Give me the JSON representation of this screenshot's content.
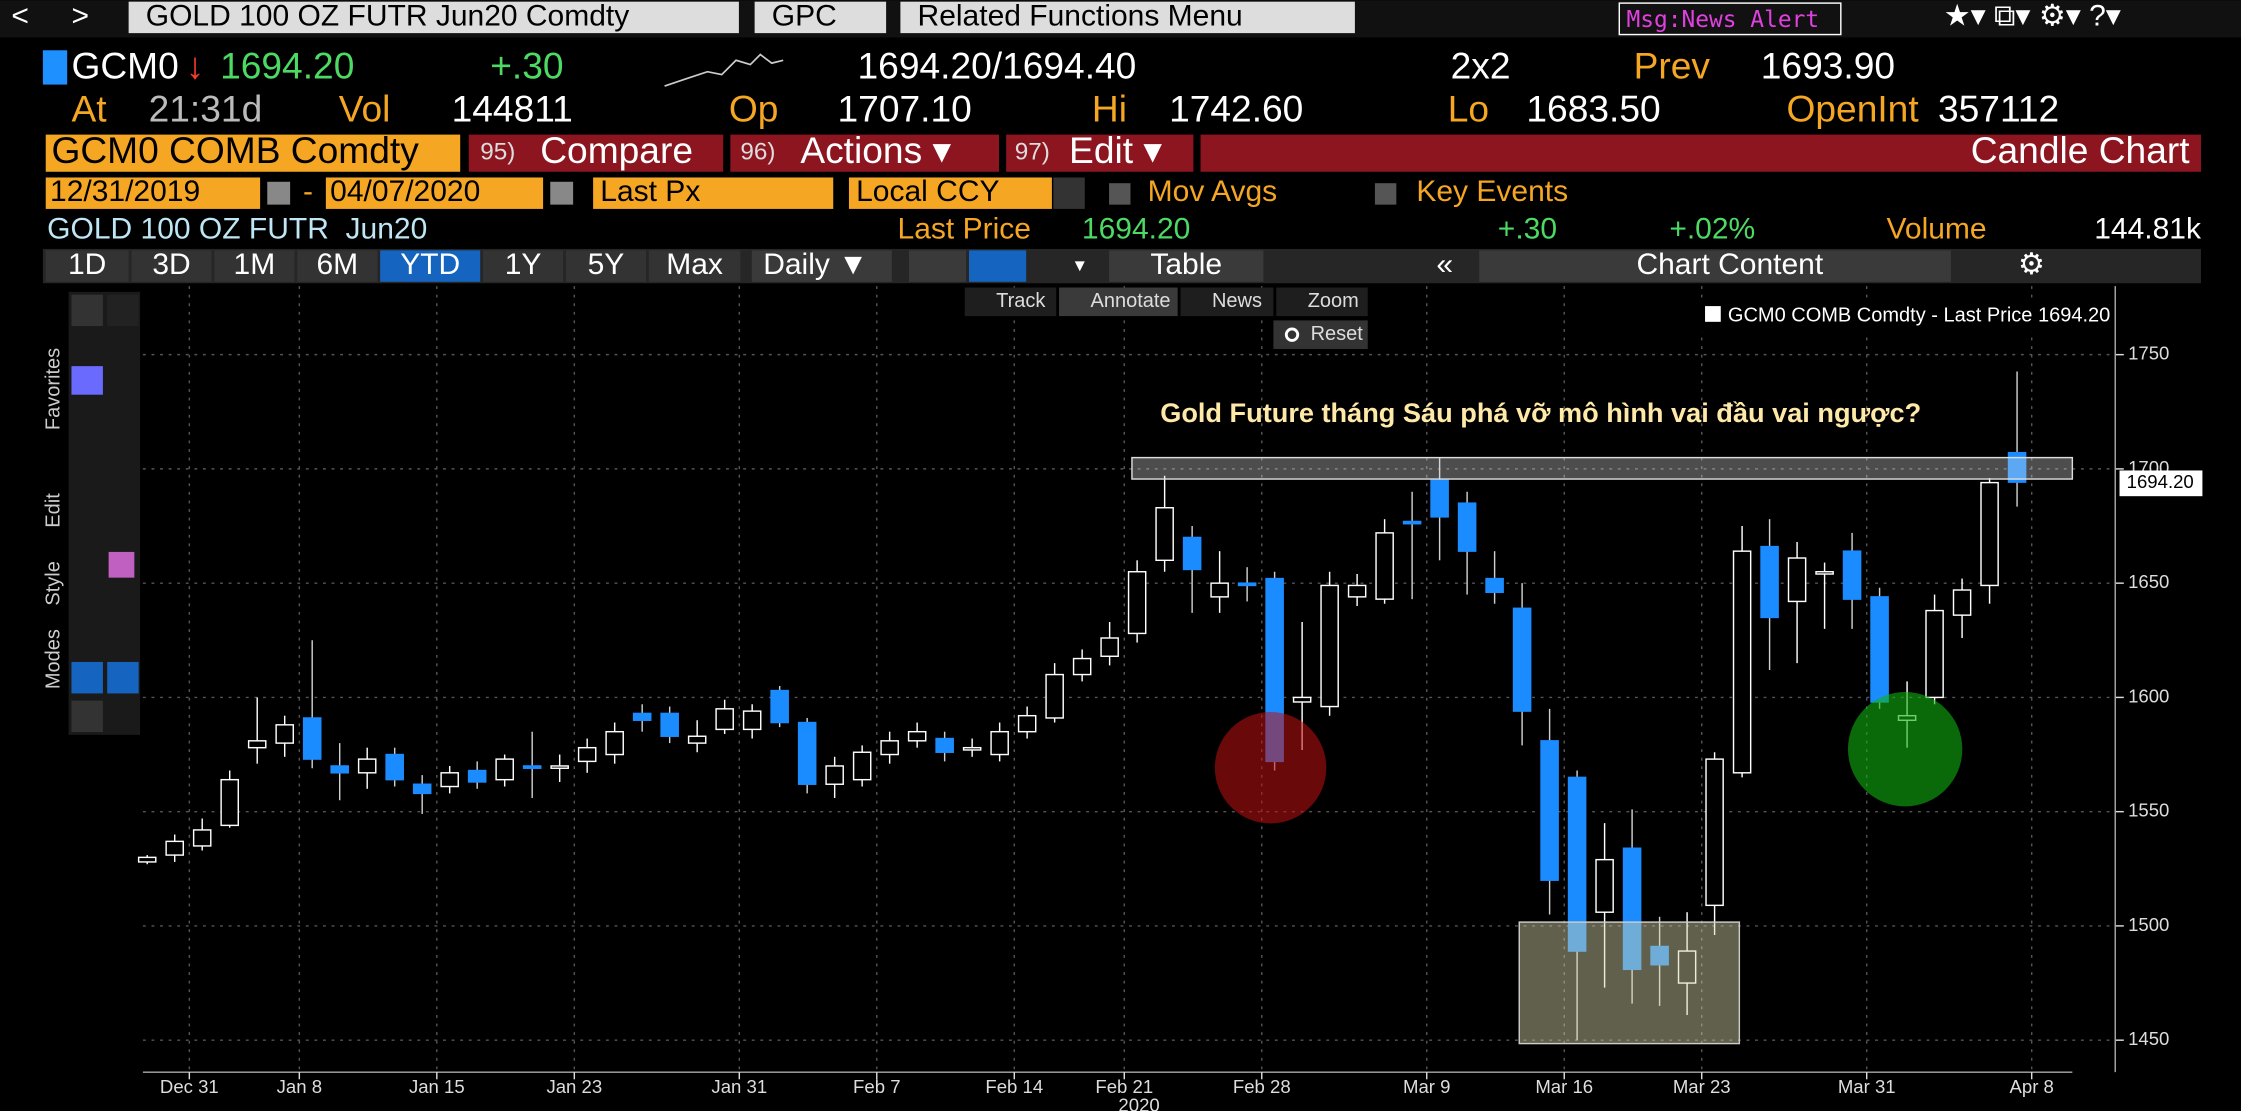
{
  "toolbar": {
    "security": "GOLD 100 OZ FUTR Jun20 Comdty",
    "function": "GPC",
    "related": "Related Functions Menu",
    "alert": "Msg:News Alert"
  },
  "quote": {
    "ticker": "GCM0",
    "last": "1694.20",
    "change": "+.30",
    "bid_ask": "1694.20/1694.40",
    "size": "2x2",
    "prev_label": "Prev",
    "prev": "1693.90",
    "at_label": "At",
    "time": "21:31d",
    "vol_label": "Vol",
    "volume": "144811",
    "open_label": "Op",
    "open": "1707.10",
    "high_label": "Hi",
    "high": "1742.60",
    "low_label": "Lo",
    "low": "1683.50",
    "oi_label": "OpenInt",
    "open_interest": "357112"
  },
  "actions": {
    "security": "GCM0 COMB Comdty",
    "compare_key": "95)",
    "compare": "Compare",
    "actions_key": "96)",
    "actions": "Actions ▾",
    "edit_key": "97)",
    "edit": "Edit ▾",
    "chart_type": "Candle Chart"
  },
  "settings": {
    "start": "12/31/2019",
    "dash": "-",
    "end": "04/07/2020",
    "field": "Last Px",
    "currency": "Local CCY",
    "mov_avgs": "Mov Avgs",
    "key_events": "Key Events"
  },
  "summary": {
    "name": "GOLD 100 OZ FUTR  Jun20",
    "last_label": "Last Price",
    "last": "1694.20",
    "change": "+.30",
    "change_pct": "+.02%",
    "volume_label": "Volume",
    "volume": "144.81k"
  },
  "tabs": [
    "1D",
    "3D",
    "1M",
    "6M",
    "YTD",
    "1Y",
    "5Y",
    "Max"
  ],
  "periodicity": "Daily ▼",
  "table": "Table",
  "chart_content": "Chart Content",
  "chart_tools": [
    "Track",
    "Annotate",
    "News",
    "Zoom"
  ],
  "reset": "Reset",
  "side_panels": [
    "Favorites",
    "Edit",
    "Style",
    "Modes"
  ],
  "chart_data": {
    "type": "candlestick",
    "legend": "GCM0 COMB Comdty - Last Price 1694.20",
    "annotation": "Gold Future tháng Sáu phá vỡ mô hình vai đầu vai ngược?",
    "year_label": "2020",
    "price_tag": "1694.20",
    "categories": [
      null,
      null,
      "Dec 31",
      null,
      null,
      null,
      "Jan 8",
      null,
      null,
      null,
      null,
      "Jan 15",
      null,
      null,
      null,
      null,
      "Jan 23",
      null,
      null,
      null,
      null,
      null,
      "Jan 31",
      null,
      null,
      null,
      null,
      "Feb 7",
      null,
      null,
      null,
      null,
      "Feb 14",
      null,
      null,
      null,
      "Feb 21",
      null,
      null,
      null,
      null,
      "Feb 28",
      null,
      null,
      null,
      null,
      null,
      "Mar 9",
      null,
      null,
      null,
      null,
      "Mar 16",
      null,
      null,
      null,
      null,
      "Mar 23",
      null,
      null,
      null,
      null,
      null,
      "Mar 31",
      null,
      null,
      null,
      null,
      null,
      "Apr 8"
    ],
    "open": [
      1528,
      1531,
      1535,
      1544,
      1578,
      1580,
      1591,
      1570,
      1567,
      1575,
      1562,
      1561,
      1568,
      1564,
      1570,
      1569,
      1572,
      1575,
      1593,
      1593,
      1580,
      1586,
      1586,
      1603,
      1589,
      1562,
      1564,
      1575,
      1581,
      1582,
      1577,
      1575,
      1585,
      1591,
      1610,
      1618,
      1628,
      1660,
      1670,
      1644,
      1650,
      1652,
      1598,
      1596,
      1644,
      1643,
      1677,
      1695,
      1685,
      1652,
      1639,
      1581,
      1565,
      1506,
      1534,
      1491,
      1475,
      1509,
      1567,
      1666,
      1642,
      1654,
      1664,
      1644,
      1590,
      1600,
      1636,
      1649,
      1707.1,
      null
    ],
    "high": [
      1531,
      1540,
      1547,
      1568,
      1600,
      1592,
      1625,
      1580,
      1578,
      1578,
      1566,
      1570,
      1572,
      1575,
      1585,
      1575,
      1582,
      1589,
      1597,
      1596,
      1590,
      1599,
      1597,
      1605,
      1591,
      1574,
      1579,
      1585,
      1589,
      1585,
      1582,
      1589,
      1596,
      1615,
      1621,
      1633,
      1660,
      1697,
      1675,
      1664,
      1657,
      1655,
      1633,
      1655,
      1654,
      1678,
      1690,
      1705,
      1690,
      1664,
      1650,
      1595,
      1568,
      1545,
      1551,
      1504,
      1506,
      1576,
      1675,
      1678,
      1668,
      1659,
      1672,
      1648,
      1607,
      1645,
      1652,
      1696,
      1742.6,
      null
    ],
    "low": [
      1527,
      1528,
      1533,
      1543,
      1571,
      1574,
      1569,
      1555,
      1560,
      1561,
      1549,
      1558,
      1560,
      1561,
      1556,
      1563,
      1567,
      1571,
      1585,
      1580,
      1576,
      1584,
      1582,
      1587,
      1558,
      1556,
      1561,
      1571,
      1578,
      1572,
      1574,
      1572,
      1582,
      1589,
      1607,
      1614,
      1624,
      1655,
      1637,
      1637,
      1642,
      1568,
      1577,
      1592,
      1640,
      1641,
      1643,
      1660,
      1645,
      1641,
      1579,
      1505,
      1450,
      1473,
      1466,
      1465,
      1461,
      1496,
      1565,
      1612,
      1615,
      1630,
      1630,
      1595,
      1578,
      1597,
      1626,
      1641,
      1683.5,
      null
    ],
    "close": [
      1530,
      1537,
      1542,
      1564,
      1581,
      1588,
      1573,
      1567,
      1573,
      1564,
      1558,
      1567,
      1563,
      1573,
      1569,
      1570,
      1578,
      1585,
      1590,
      1583,
      1583,
      1595,
      1594,
      1589,
      1562,
      1570,
      1576,
      1581,
      1585,
      1576,
      1578,
      1585,
      1592,
      1610,
      1617,
      1626,
      1655,
      1683,
      1656,
      1650,
      1649,
      1572,
      1600,
      1649,
      1649,
      1672,
      1676,
      1679,
      1664,
      1646,
      1594,
      1520,
      1489,
      1529,
      1481,
      1483,
      1489,
      1573,
      1664,
      1635,
      1661,
      1655,
      1643,
      1598,
      1592,
      1638,
      1647,
      1694,
      1694.2,
      null
    ],
    "up_color": "#ffffff",
    "down_color": "#1a8cff",
    "ylim": [
      1436,
      1780
    ],
    "yticks": [
      1450,
      1500,
      1550,
      1600,
      1650,
      1700,
      1750
    ],
    "grid": true
  }
}
